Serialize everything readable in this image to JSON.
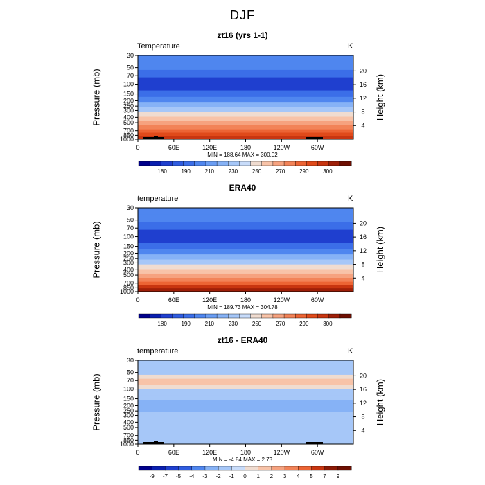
{
  "page": {
    "title": "DJF"
  },
  "chart_data": [
    {
      "type": "contour",
      "title": "zt16 (yrs 1-1)",
      "left_label": "Temperature",
      "right_label": "K",
      "xlabel": "",
      "ylabel": "Pressure (mb)",
      "ylabel_right": "Height (km)",
      "x_ticks": [
        "0",
        "60E",
        "120E",
        "180",
        "120W",
        "60W"
      ],
      "y_ticks": [
        "30",
        "50",
        "70",
        "100",
        "150",
        "200",
        "250",
        "300",
        "400",
        "500",
        "700",
        "850",
        "1000"
      ],
      "y_right_ticks": [
        "4",
        "8",
        "12",
        "16",
        "20"
      ],
      "stats": "MIN = 188.64   MAX = 300.02",
      "min": 188.64,
      "max": 300.02,
      "colorbar_labels": [
        "180",
        "190",
        "210",
        "230",
        "250",
        "270",
        "290",
        "300"
      ],
      "levels": [
        {
          "p_top": 30,
          "p_bot": 40,
          "value": 215
        },
        {
          "p_top": 40,
          "p_bot": 55,
          "value": 210
        },
        {
          "p_top": 55,
          "p_bot": 75,
          "value": 205
        },
        {
          "p_top": 75,
          "p_bot": 130,
          "value": 195
        },
        {
          "p_top": 130,
          "p_bot": 170,
          "value": 205
        },
        {
          "p_top": 170,
          "p_bot": 210,
          "value": 215
        },
        {
          "p_top": 210,
          "p_bot": 260,
          "value": 225
        },
        {
          "p_top": 260,
          "p_bot": 320,
          "value": 235
        },
        {
          "p_top": 320,
          "p_bot": 390,
          "value": 245
        },
        {
          "p_top": 390,
          "p_bot": 470,
          "value": 255
        },
        {
          "p_top": 470,
          "p_bot": 560,
          "value": 263
        },
        {
          "p_top": 560,
          "p_bot": 660,
          "value": 270
        },
        {
          "p_top": 660,
          "p_bot": 760,
          "value": 277
        },
        {
          "p_top": 760,
          "p_bot": 870,
          "value": 283
        },
        {
          "p_top": 870,
          "p_bot": 1000,
          "value": 290
        }
      ]
    },
    {
      "type": "contour",
      "title": "ERA40",
      "left_label": "temperature",
      "right_label": "K",
      "xlabel": "",
      "ylabel": "Pressure (mb)",
      "ylabel_right": "Height (km)",
      "x_ticks": [
        "0",
        "60E",
        "120E",
        "180",
        "120W",
        "60W"
      ],
      "y_ticks": [
        "30",
        "50",
        "70",
        "100",
        "150",
        "200",
        "250",
        "300",
        "400",
        "500",
        "700",
        "850",
        "1000"
      ],
      "y_right_ticks": [
        "4",
        "8",
        "12",
        "16",
        "20"
      ],
      "stats": "MIN = 189.73   MAX = 304.78",
      "min": 189.73,
      "max": 304.78,
      "colorbar_labels": [
        "180",
        "190",
        "210",
        "230",
        "250",
        "270",
        "290",
        "300"
      ],
      "levels": [
        {
          "p_top": 30,
          "p_bot": 40,
          "value": 215
        },
        {
          "p_top": 40,
          "p_bot": 55,
          "value": 210
        },
        {
          "p_top": 55,
          "p_bot": 75,
          "value": 205
        },
        {
          "p_top": 75,
          "p_bot": 130,
          "value": 195
        },
        {
          "p_top": 130,
          "p_bot": 170,
          "value": 205
        },
        {
          "p_top": 170,
          "p_bot": 210,
          "value": 215
        },
        {
          "p_top": 210,
          "p_bot": 260,
          "value": 225
        },
        {
          "p_top": 260,
          "p_bot": 320,
          "value": 235
        },
        {
          "p_top": 320,
          "p_bot": 390,
          "value": 245
        },
        {
          "p_top": 390,
          "p_bot": 470,
          "value": 255
        },
        {
          "p_top": 470,
          "p_bot": 560,
          "value": 263
        },
        {
          "p_top": 560,
          "p_bot": 660,
          "value": 270
        },
        {
          "p_top": 660,
          "p_bot": 760,
          "value": 277
        },
        {
          "p_top": 760,
          "p_bot": 870,
          "value": 285
        },
        {
          "p_top": 870,
          "p_bot": 1000,
          "value": 295
        }
      ]
    },
    {
      "type": "contour",
      "title": "zt16 - ERA40",
      "left_label": "temperature",
      "right_label": "K",
      "xlabel": "",
      "ylabel": "Pressure (mb)",
      "ylabel_right": "Height (km)",
      "x_ticks": [
        "0",
        "60E",
        "120E",
        "180",
        "120W",
        "60W"
      ],
      "y_ticks": [
        "30",
        "50",
        "70",
        "100",
        "150",
        "200",
        "250",
        "300",
        "400",
        "500",
        "700",
        "850",
        "1000"
      ],
      "y_right_ticks": [
        "4",
        "8",
        "12",
        "16",
        "20"
      ],
      "stats": "MIN =   -4.84   MAX =    2.73",
      "min": -4.84,
      "max": 2.73,
      "colorbar_labels": [
        "-9",
        "-7",
        "-5",
        "-4",
        "-3",
        "-2",
        "-1",
        "0",
        "1",
        "2",
        "3",
        "4",
        "5",
        "7",
        "9"
      ],
      "levels": [
        {
          "p_top": 30,
          "p_bot": 55,
          "value": -1.5
        },
        {
          "p_top": 55,
          "p_bot": 65,
          "value": 0.5
        },
        {
          "p_top": 65,
          "p_bot": 85,
          "value": 1.5
        },
        {
          "p_top": 85,
          "p_bot": 100,
          "value": 0.5
        },
        {
          "p_top": 100,
          "p_bot": 130,
          "value": -1.5
        },
        {
          "p_top": 130,
          "p_bot": 160,
          "value": -2.5
        },
        {
          "p_top": 160,
          "p_bot": 260,
          "value": -3.5
        },
        {
          "p_top": 260,
          "p_bot": 380,
          "value": -2.5
        },
        {
          "p_top": 380,
          "p_bot": 560,
          "value": -1.5
        },
        {
          "p_top": 560,
          "p_bot": 1000,
          "value": -1.5
        }
      ]
    }
  ],
  "colors": {
    "temperature_scale": [
      "#00008b",
      "#0a1fb0",
      "#1f3fcf",
      "#2f5ce0",
      "#3b6ee8",
      "#4f86ef",
      "#6a9df3",
      "#86b2f6",
      "#a6c7f8",
      "#c8dcfa",
      "#f0dcd0",
      "#f8c3a8",
      "#f6a27f",
      "#f28358",
      "#ec6434",
      "#e04a1a",
      "#c83510",
      "#9e1f08",
      "#6e0f02"
    ],
    "difference_scale": [
      "#00008b",
      "#0a1fb0",
      "#1f3fcf",
      "#2f5ce0",
      "#4f86ef",
      "#86b2f6",
      "#a6c7f8",
      "#c8dcfa",
      "#f0dcd0",
      "#f8c3a8",
      "#f6a27f",
      "#f28358",
      "#ec6434",
      "#c83510",
      "#8b1a05",
      "#6e0f02"
    ],
    "topography": "#000000"
  }
}
